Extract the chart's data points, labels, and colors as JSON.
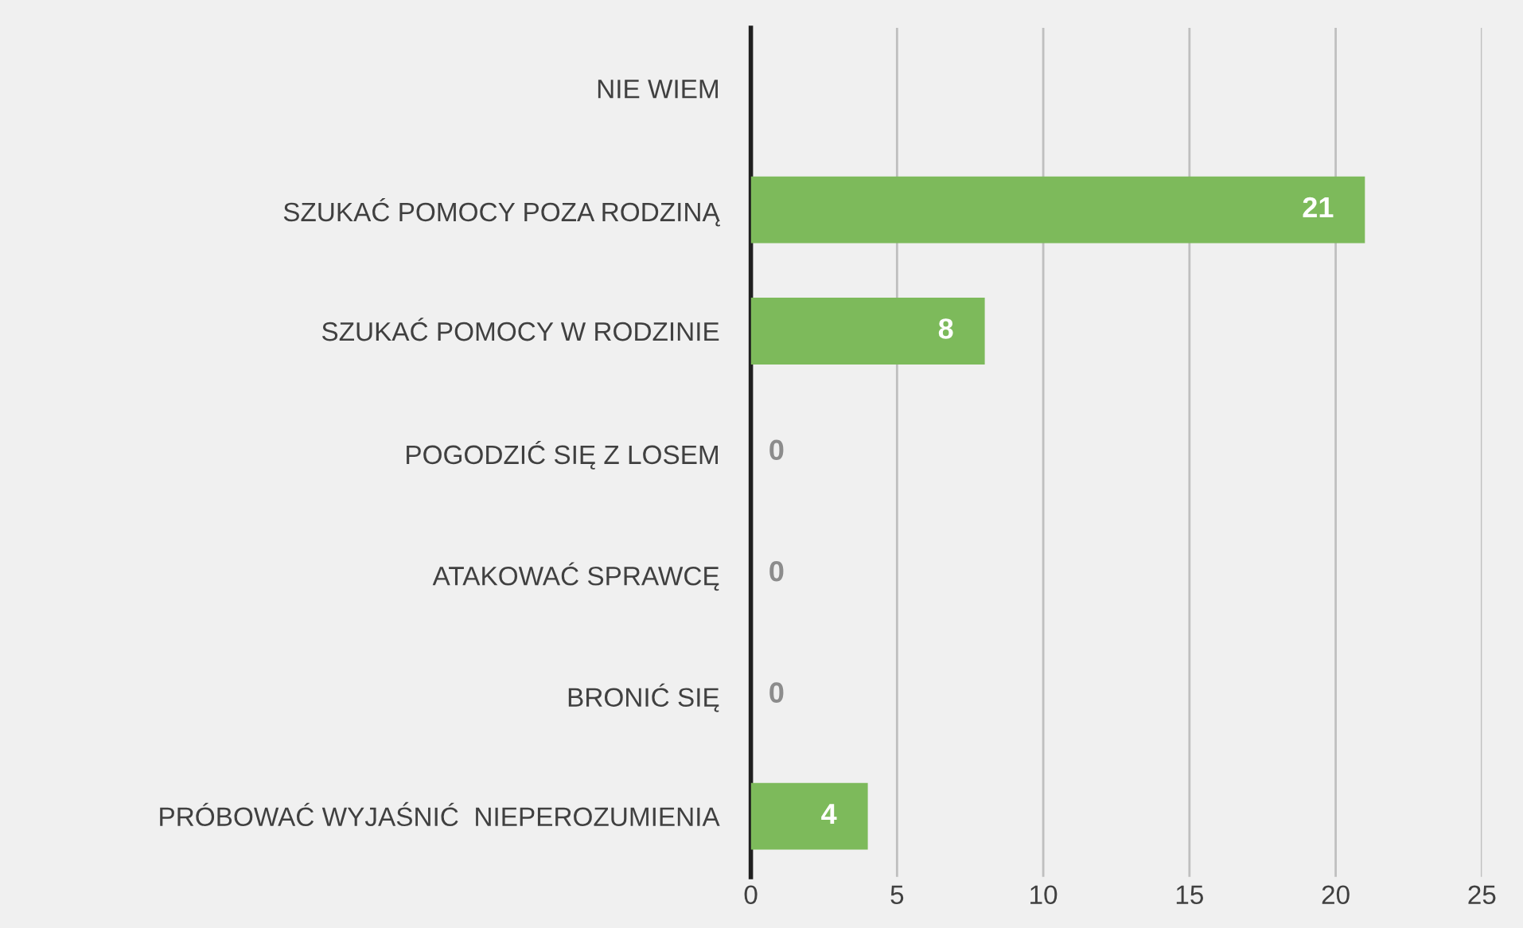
{
  "chart_data": {
    "type": "bar",
    "orientation": "horizontal",
    "categories": [
      "NIE WIEM",
      "SZUKAĆ POMOCY POZA RODZINĄ",
      "SZUKAĆ POMOCY W RODZINIE",
      "POGODZIĆ SIĘ Z LOSEM",
      "ATAKOWAĆ SPRAWCĘ",
      "BRONIĆ SIĘ",
      "PRÓBOWAĆ WYJAŚNIĆ  NIEPEROZUMIENIA"
    ],
    "values": [
      null,
      21,
      8,
      0,
      0,
      0,
      4
    ],
    "value_labels": [
      null,
      "21",
      "8",
      "0",
      "0",
      "0",
      "4"
    ],
    "color": "#7dba5b",
    "xlim": [
      0,
      25
    ],
    "xticks": [
      0,
      5,
      10,
      15,
      20,
      25
    ],
    "grid": "x"
  }
}
